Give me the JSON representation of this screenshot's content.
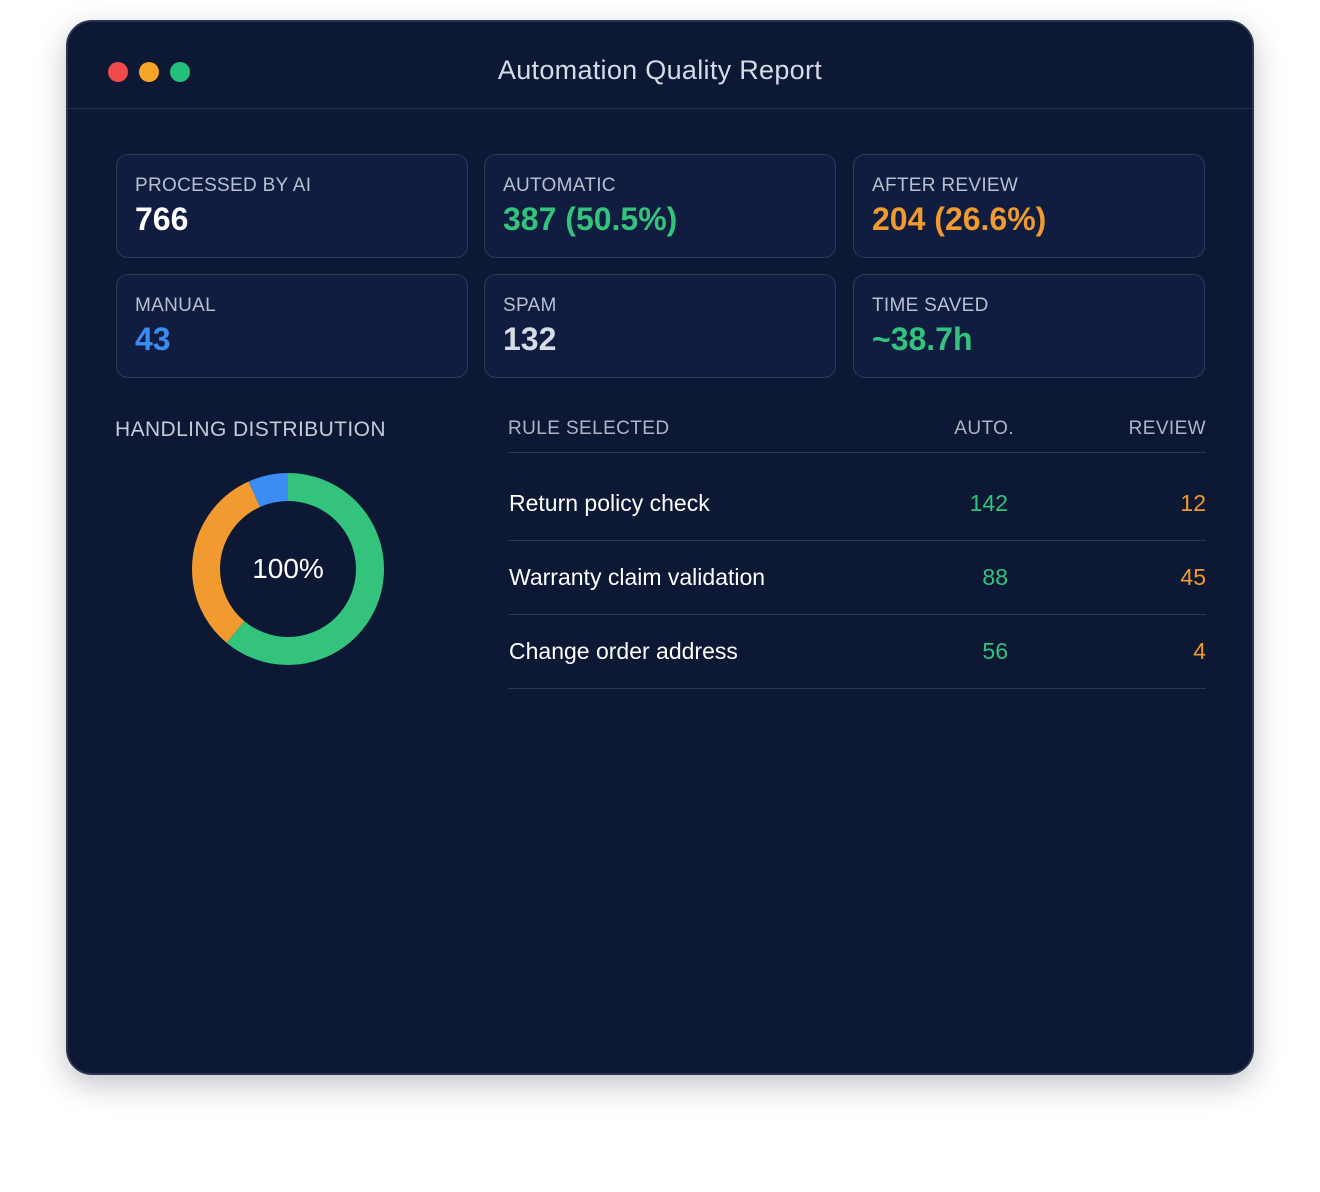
{
  "window": {
    "title": "Automation Quality Report"
  },
  "stats": [
    {
      "label": "PROCESSED BY AI",
      "value": "766",
      "color": "#ffffff"
    },
    {
      "label": "AUTOMATIC",
      "value": "387 (50.5%)",
      "color": "#33c37c"
    },
    {
      "label": "AFTER REVIEW",
      "value": "204 (26.6%)",
      "color": "#f19a30"
    },
    {
      "label": "MANUAL",
      "value": "43",
      "color": "#3b8cf3"
    },
    {
      "label": "SPAM",
      "value": "132",
      "color": "#d7dbe3"
    },
    {
      "label": "TIME SAVED",
      "value": "~38.7h",
      "color": "#33c37c"
    }
  ],
  "distribution": {
    "title": "HANDLING DISTRIBUTION",
    "center_label": "100%",
    "segments": [
      {
        "name": "Automatic",
        "value": 387,
        "color": "#33c37c"
      },
      {
        "name": "After review",
        "value": 204,
        "color": "#f19a30"
      },
      {
        "name": "Manual",
        "value": 43,
        "color": "#3b8cf3"
      }
    ]
  },
  "rules": {
    "headers": {
      "rule": "RULE SELECTED",
      "auto": "AUTO.",
      "review": "REVIEW"
    },
    "rows": [
      {
        "rule": "Return policy check",
        "auto": "142",
        "review": "12"
      },
      {
        "rule": "Warranty claim validation",
        "auto": "88",
        "review": "45"
      },
      {
        "rule": "Change order address",
        "auto": "56",
        "review": "4"
      }
    ]
  }
}
